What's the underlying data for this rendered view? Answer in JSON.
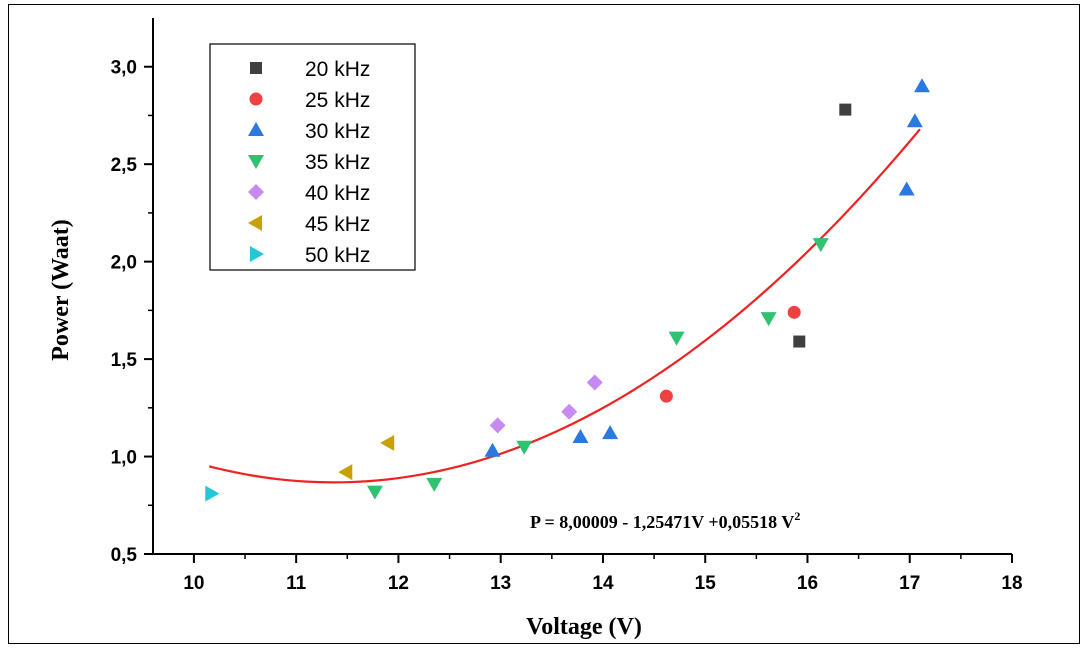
{
  "chart_data": {
    "type": "scatter",
    "xlabel": "Voltage (V)",
    "ylabel": "Power (Waat)",
    "xlim": [
      9.6,
      18
    ],
    "ylim": [
      0.5,
      3.25
    ],
    "x_ticks": [
      10,
      11,
      12,
      13,
      14,
      15,
      16,
      17,
      18
    ],
    "y_ticks": [
      0.5,
      1.0,
      1.5,
      2.0,
      2.5,
      3.0
    ],
    "x_tick_labels": [
      "10",
      "11",
      "12",
      "13",
      "14",
      "15",
      "16",
      "17",
      "18"
    ],
    "y_tick_labels": [
      "0,5",
      "1,0",
      "1,5",
      "2,0",
      "2,5",
      "3,0"
    ],
    "legend_position": "top-left",
    "grid": false,
    "series": [
      {
        "name": "20 kHz",
        "marker": "square",
        "color": "#3f3f3f",
        "points": [
          [
            15.92,
            1.59
          ],
          [
            16.37,
            2.78
          ]
        ]
      },
      {
        "name": "25 kHz",
        "marker": "circle",
        "color": "#f04040",
        "points": [
          [
            14.62,
            1.31
          ],
          [
            15.87,
            1.74
          ]
        ]
      },
      {
        "name": "30 kHz",
        "marker": "triangle-up",
        "color": "#2a78e0",
        "points": [
          [
            12.92,
            1.03
          ],
          [
            13.78,
            1.1
          ],
          [
            14.07,
            1.12
          ],
          [
            16.97,
            2.37
          ],
          [
            17.05,
            2.72
          ],
          [
            17.12,
            2.9
          ]
        ]
      },
      {
        "name": "35 kHz",
        "marker": "triangle-down",
        "color": "#2ec271",
        "points": [
          [
            11.77,
            0.82
          ],
          [
            12.35,
            0.86
          ],
          [
            13.23,
            1.05
          ],
          [
            14.72,
            1.61
          ],
          [
            15.62,
            1.71
          ],
          [
            16.13,
            2.09
          ]
        ]
      },
      {
        "name": "40 kHz",
        "marker": "diamond",
        "color": "#c68af0",
        "points": [
          [
            12.97,
            1.16
          ],
          [
            13.67,
            1.23
          ],
          [
            13.92,
            1.38
          ]
        ]
      },
      {
        "name": "45 kHz",
        "marker": "triangle-left",
        "color": "#c8a000",
        "points": [
          [
            11.49,
            0.92
          ],
          [
            11.9,
            1.07
          ]
        ]
      },
      {
        "name": "50 kHz",
        "marker": "triangle-right",
        "color": "#26c6da",
        "points": [
          [
            10.17,
            0.81
          ]
        ]
      }
    ],
    "fit": {
      "color": "#ee2222",
      "coefficients": [
        8.00009,
        -1.25471,
        0.05518
      ],
      "x_range": [
        10.15,
        17.1
      ]
    },
    "annotation": {
      "text_main": "P = 8,00009 - 1,25471V +0,05518 V",
      "text_sup": "2"
    }
  }
}
